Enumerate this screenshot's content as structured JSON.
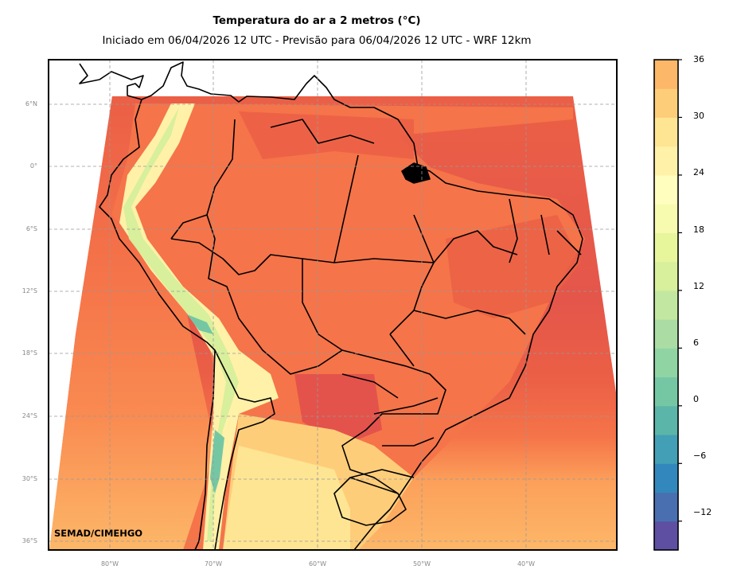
{
  "header": {
    "title": "Temperatura do ar a 2 metros (°C)",
    "subtitle": "Iniciado em 06/04/2026 12 UTC - Previsão para 06/04/2026 12 UTC - WRF 12km"
  },
  "map": {
    "variable": "Temperatura do ar a 2 metros",
    "units": "°C",
    "model": "WRF 12km",
    "lat_ticks": [
      "6°N",
      "0°",
      "6°S",
      "12°S",
      "18°S",
      "24°S",
      "30°S",
      "36°S"
    ],
    "lon_ticks": [
      "80°W",
      "70°W",
      "60°W",
      "50°W",
      "40°W"
    ],
    "credit": "SEMAD/CIMEHGO"
  },
  "colorbar": {
    "ticks": [
      "36",
      "30",
      "24",
      "18",
      "12",
      "6",
      "0",
      "−6",
      "−12"
    ],
    "min": -15,
    "max": 36,
    "step": 3,
    "colors": [
      "#5e4fa2",
      "#4a6fb0",
      "#3288bd",
      "#439fb5",
      "#5bb5a9",
      "#75c7a4",
      "#90d4a4",
      "#aadca4",
      "#c2e7a0",
      "#d8ef9c",
      "#e8f69b",
      "#f6fbb0",
      "#fffebe",
      "#fff1a8",
      "#fee593",
      "#fecd7a",
      "#fdb768",
      "#fca05a",
      "#f98a51",
      "#f57449",
      "#eb5f46",
      "#df4d4b",
      "#d03e50",
      "#bd2750",
      "#a50f45"
    ]
  }
}
